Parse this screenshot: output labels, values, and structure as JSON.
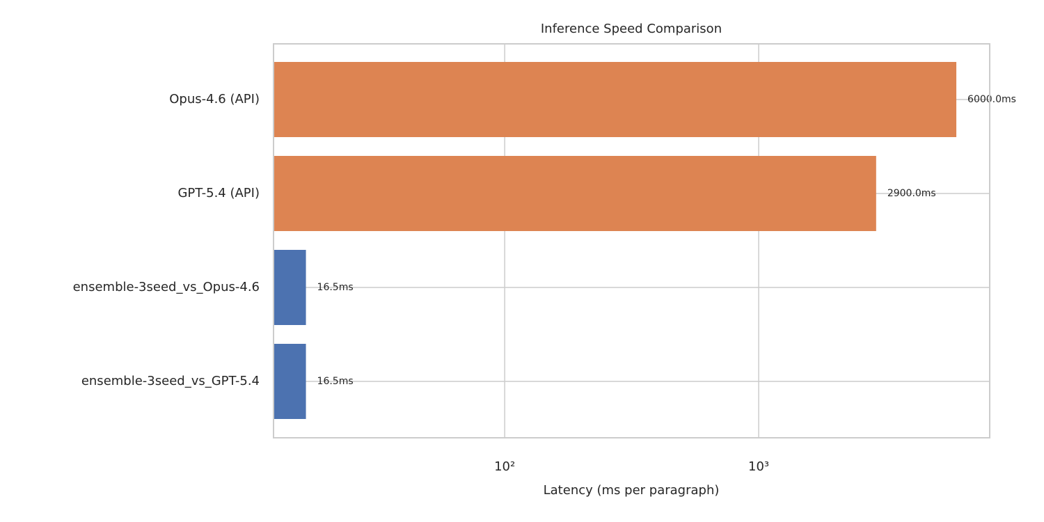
{
  "chart_data": {
    "type": "barh",
    "title": "Inference Speed Comparison",
    "xlabel": "Latency (ms per paragraph)",
    "categories": [
      "Opus-4.6 (API)",
      "GPT-5.4 (API)",
      "ensemble-3seed_vs_Opus-4.6",
      "ensemble-3seed_vs_GPT-5.4"
    ],
    "values": [
      6000,
      2900,
      16.5,
      16.5
    ],
    "value_labels": [
      "6000.0ms",
      "2900.0ms",
      "16.5ms",
      "16.5ms"
    ],
    "colors": [
      "#dd8452",
      "#dd8452",
      "#4c72b0",
      "#4c72b0"
    ],
    "xscale": "log",
    "xlim": [
      12.3,
      8120
    ],
    "xticks": [
      {
        "value": 100,
        "label": "10²"
      },
      {
        "value": 1000,
        "label": "10³"
      }
    ],
    "grid": true
  }
}
